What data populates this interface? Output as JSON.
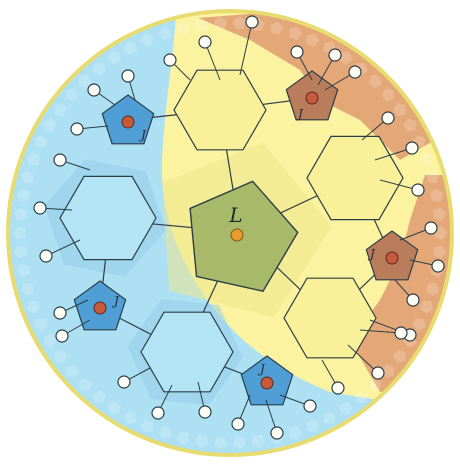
{
  "labels": {
    "center": "L",
    "junction": "J"
  },
  "colors": {
    "blue_region": "#aee0f4",
    "blue_region_dark": "#8fcce6",
    "yellow_region": "#fbf3a0",
    "yellow_region_dark": "#efe58a",
    "orange_region": "#e4a878",
    "green_center": "#a9b96a",
    "blue_pentagon": "#4f9fd6",
    "brown_pentagon": "#b97d5c",
    "center_dot": "#e89a2c",
    "junction_dot": "#c65a3b",
    "outline": "#2b3d47"
  }
}
